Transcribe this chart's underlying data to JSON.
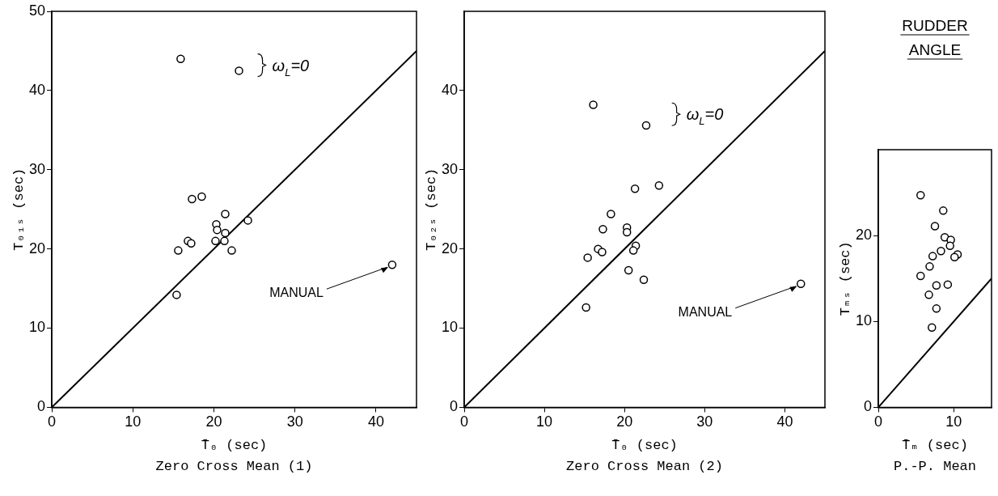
{
  "chart_data": [
    {
      "type": "scatter",
      "xlabel": "T̄₀ (sec)",
      "ylabel": "T₀₁ₛ (sec)",
      "xlim": [
        0,
        45
      ],
      "ylim": [
        0,
        50
      ],
      "xticks": [
        0,
        10,
        20,
        30,
        40
      ],
      "yticks": [
        0,
        10,
        20,
        30,
        40,
        50
      ],
      "series": [
        {
          "type": "scatter",
          "marker": "circle",
          "color": "#000000",
          "x": [
            15.9,
            23.1,
            17.3,
            18.5,
            21.4,
            24.2,
            20.3,
            20.4,
            21.4,
            16.8,
            17.2,
            20.2,
            21.3,
            15.6,
            22.2,
            15.4,
            42
          ],
          "values": [
            44.0,
            42.5,
            26.3,
            26.6,
            24.4,
            23.6,
            23.1,
            22.4,
            22.0,
            21.0,
            20.7,
            21.0,
            21.0,
            19.8,
            19.8,
            14.2,
            18.0
          ]
        },
        {
          "type": "line",
          "color": "#000000",
          "x": [
            0,
            45
          ],
          "values": [
            0,
            45
          ]
        }
      ],
      "annotations": [
        {
          "text": "ω$_{L}$=0",
          "x": 26,
          "y": 43.2
        },
        {
          "text": "MANUAL",
          "x": 42,
          "y": 18.0
        },
        "Zero Cross Mean (1)"
      ]
    },
    {
      "type": "scatter",
      "xlabel": "T̄₀ (sec)",
      "ylabel": "T₀₂ₛ (sec)",
      "xlim": [
        0,
        45
      ],
      "ylim": [
        0,
        50
      ],
      "xticks": [
        0,
        10,
        20,
        30,
        40
      ],
      "yticks": [
        0,
        10,
        20,
        30,
        40
      ],
      "series": [
        {
          "type": "scatter",
          "marker": "circle",
          "color": "#000000",
          "x": [
            16.1,
            22.7,
            21.3,
            24.3,
            18.3,
            17.3,
            20.3,
            20.3,
            16.7,
            17.2,
            21.4,
            21.1,
            15.4,
            20.5,
            22.4,
            15.2,
            42
          ],
          "values": [
            38.2,
            35.6,
            27.6,
            28.0,
            24.4,
            22.5,
            22.7,
            22.1,
            20.0,
            19.6,
            20.4,
            19.8,
            18.9,
            17.3,
            16.1,
            12.6,
            15.6
          ]
        },
        {
          "type": "line",
          "color": "#000000",
          "x": [
            0,
            45
          ],
          "values": [
            0,
            45
          ]
        }
      ],
      "annotations": [
        {
          "text": "ω$_{L}$=0",
          "x": 26.5,
          "y": 37
        },
        {
          "text": "MANUAL",
          "x": 42,
          "y": 15.6
        },
        "Zero Cross Mean (2)"
      ]
    },
    {
      "type": "scatter",
      "title": "RUDDER ANGLE",
      "xlabel": "T̄ₘ (sec)",
      "ylabel": "Tₘₛ (sec)",
      "xlim": [
        0,
        15
      ],
      "ylim": [
        0,
        30
      ],
      "xticks": [
        0,
        10
      ],
      "yticks": [
        0,
        10,
        20
      ],
      "series": [
        {
          "type": "scatter",
          "marker": "circle",
          "color": "#000000",
          "x": [
            5.6,
            8.6,
            7.5,
            8.8,
            9.6,
            9.5,
            8.3,
            7.2,
            10.5,
            10.1,
            6.8,
            5.6,
            7.7,
            9.2,
            6.7,
            7.7,
            7.1
          ],
          "values": [
            24.7,
            22.9,
            21.1,
            19.8,
            19.5,
            18.8,
            18.2,
            17.6,
            17.8,
            17.5,
            16.4,
            15.3,
            14.2,
            14.3,
            13.1,
            11.5,
            9.3
          ]
        },
        {
          "type": "line",
          "color": "#000000",
          "x": [
            0,
            15
          ],
          "values": [
            0,
            15
          ]
        }
      ],
      "annotations": [
        "P.-P. Mean"
      ]
    }
  ]
}
